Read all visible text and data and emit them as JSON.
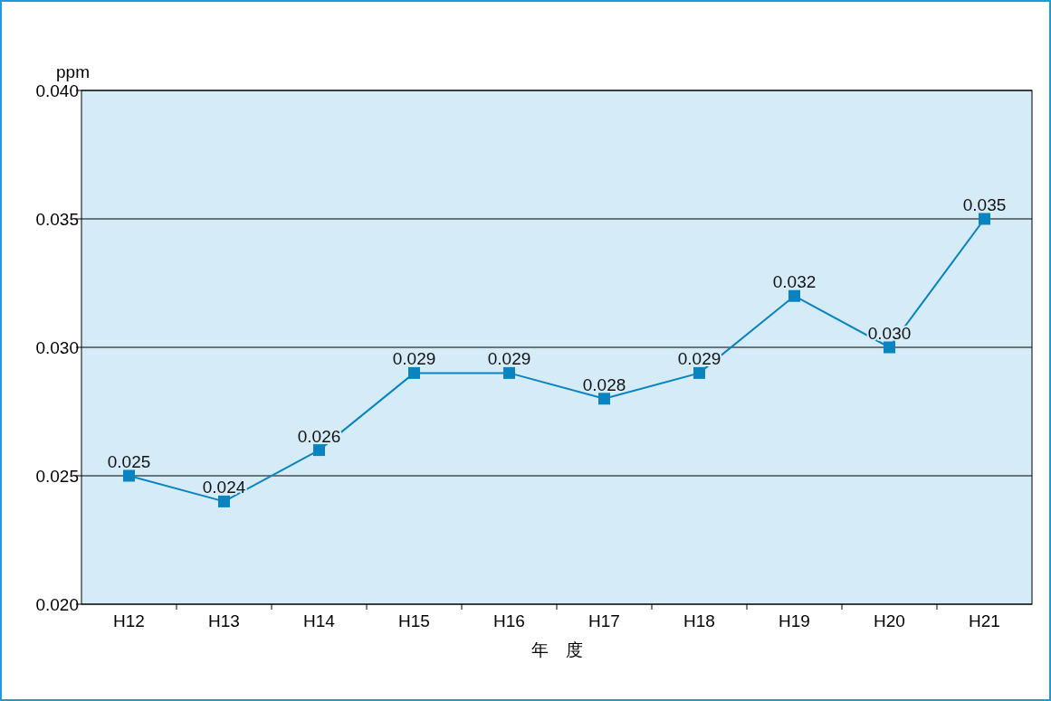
{
  "chart_data": {
    "type": "line",
    "ylabel": "ppm",
    "xlabel": "年　度",
    "categories": [
      "H12",
      "H13",
      "H14",
      "H15",
      "H16",
      "H17",
      "H18",
      "H19",
      "H20",
      "H21"
    ],
    "series": [
      {
        "color": "#0a84c0",
        "values": [
          0.025,
          0.024,
          0.026,
          0.029,
          0.029,
          0.028,
          0.029,
          0.032,
          0.03,
          0.035
        ],
        "value_labels": [
          "0.025",
          "0.024",
          "0.026",
          "0.029",
          "0.029",
          "0.028",
          "0.029",
          "0.032",
          "0.030",
          "0.035"
        ]
      }
    ],
    "ylim": [
      0.02,
      0.04
    ],
    "yticks": [
      {
        "value": 0.02,
        "label": "0.020"
      },
      {
        "value": 0.025,
        "label": "0.025"
      },
      {
        "value": 0.03,
        "label": "0.030"
      },
      {
        "value": 0.035,
        "label": "0.035"
      },
      {
        "value": 0.04,
        "label": "0.040"
      }
    ],
    "grid": "y",
    "marker": "square",
    "line_style": "solid"
  }
}
